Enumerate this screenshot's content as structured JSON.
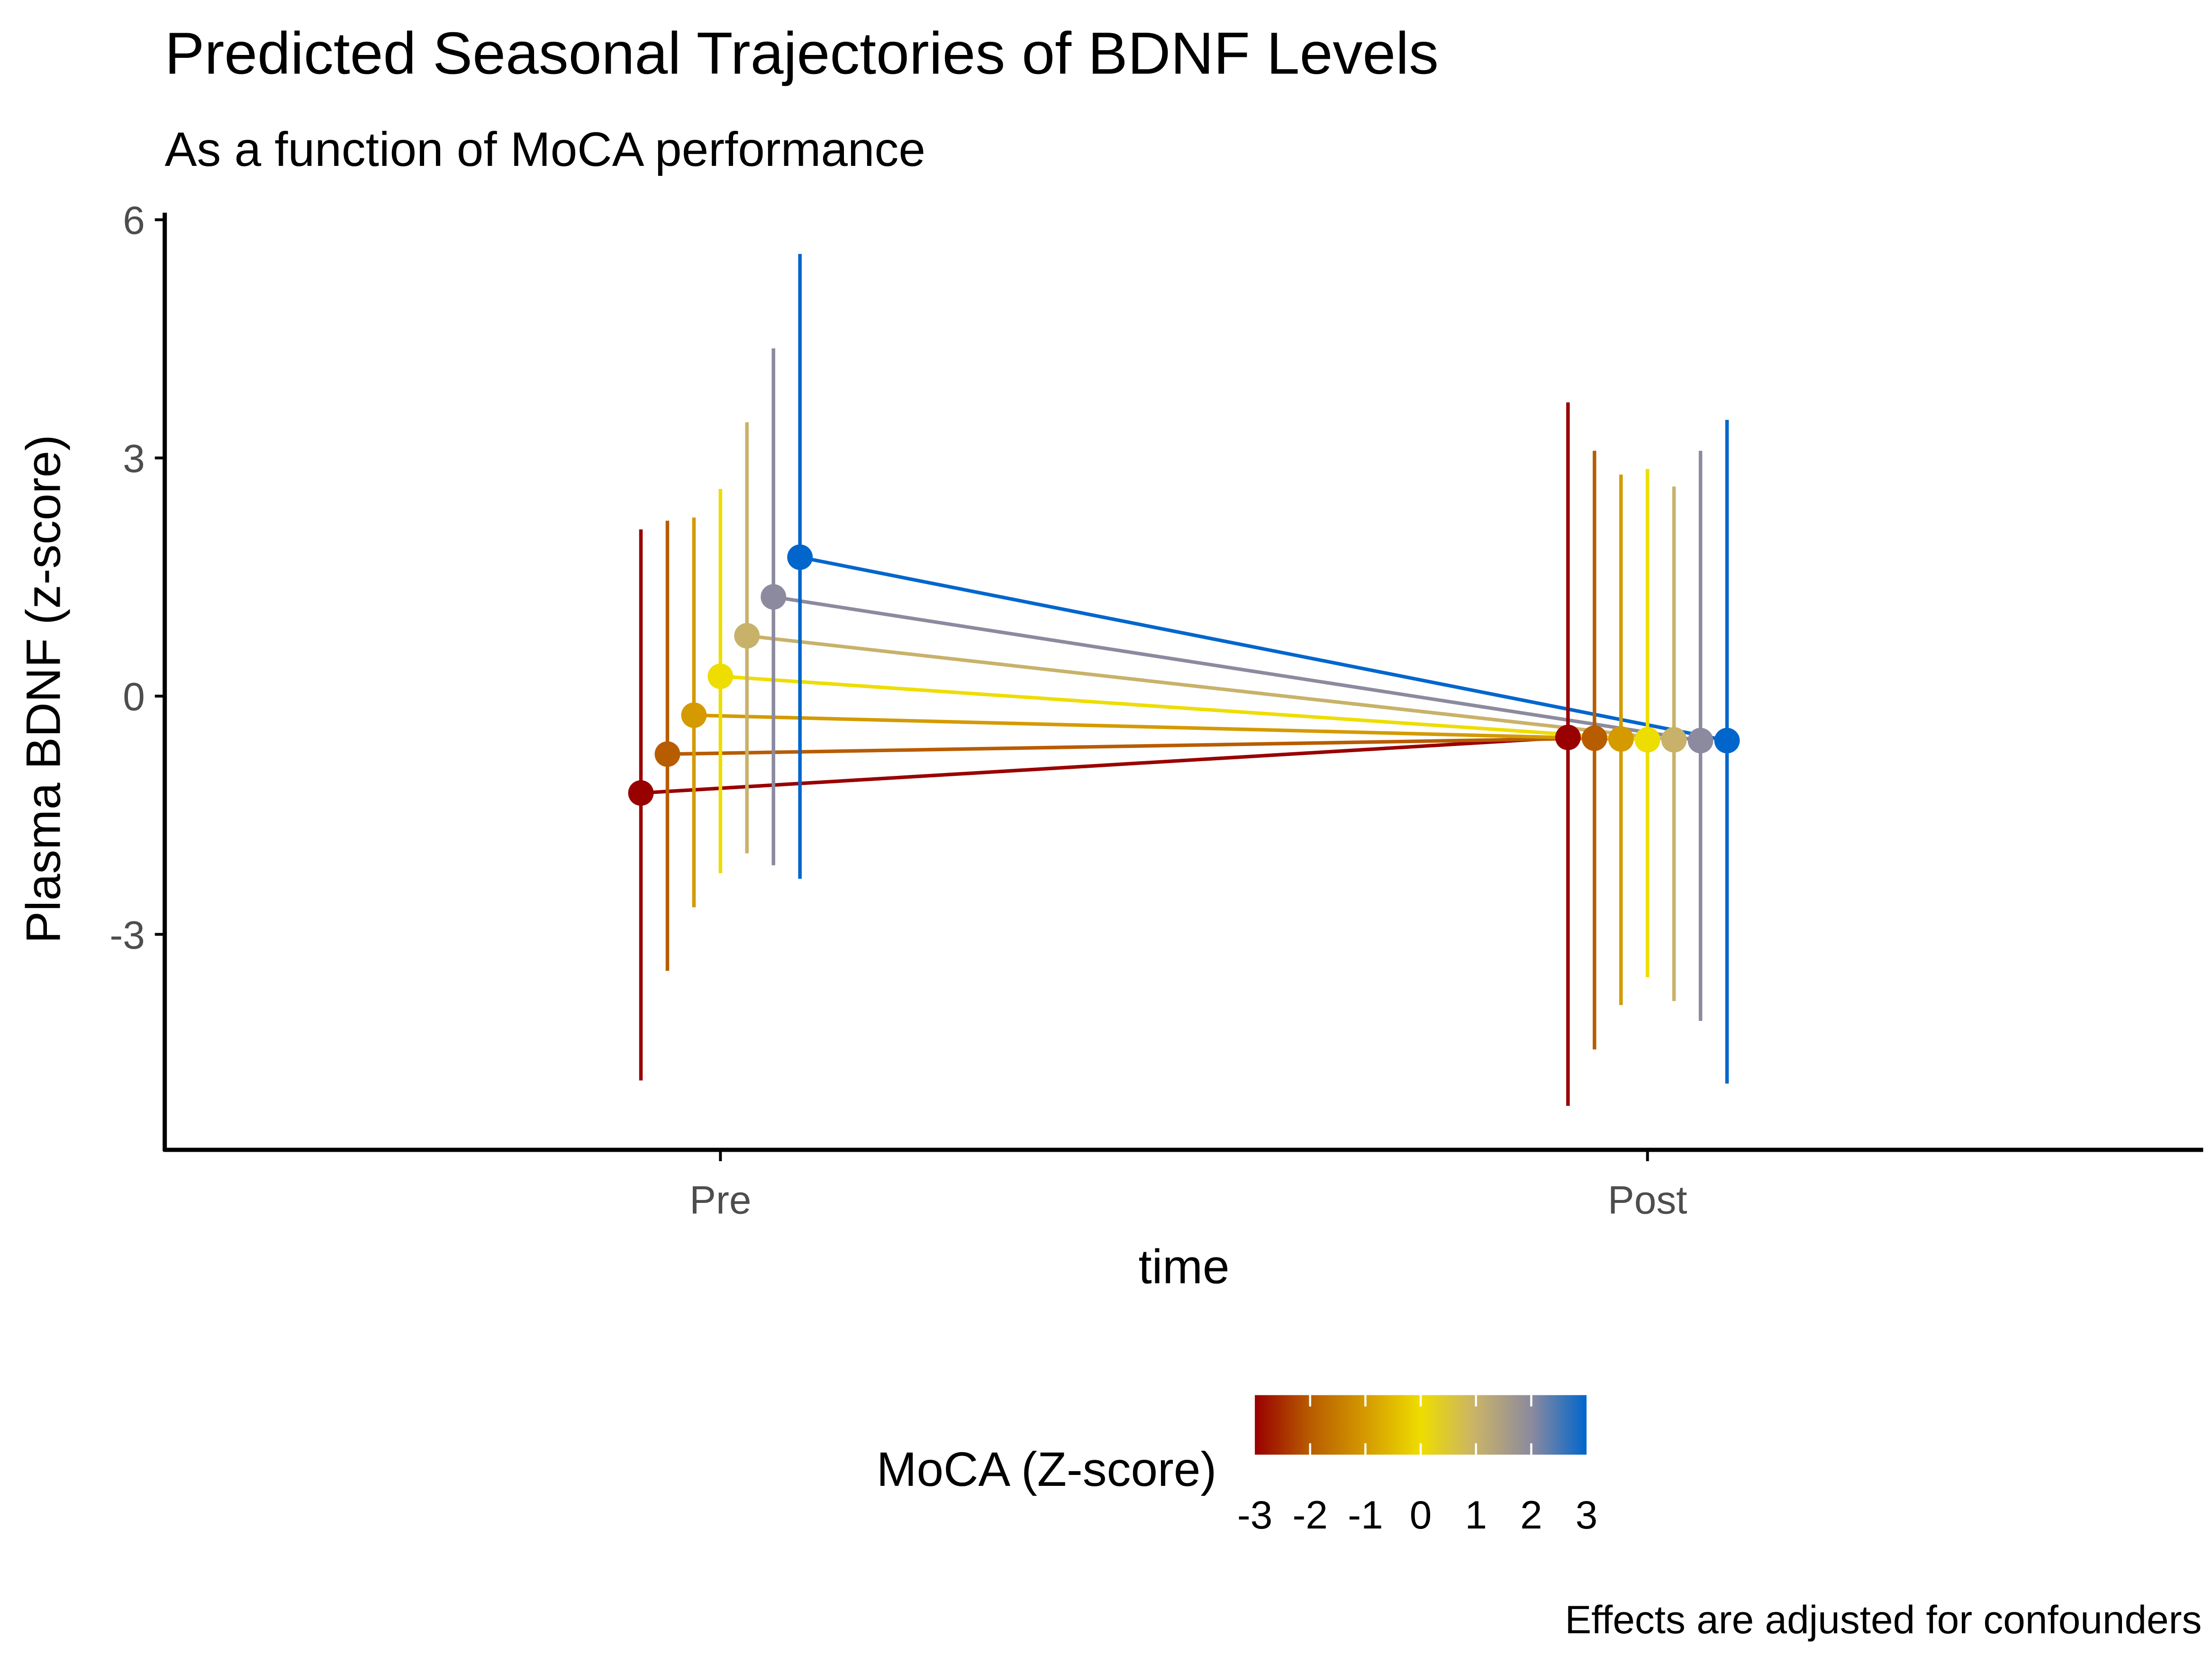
{
  "chart_data": {
    "type": "line",
    "title": "Predicted Seasonal Trajectories of BDNF Levels",
    "subtitle": "As a function of MoCA performance",
    "xlabel": "time",
    "ylabel": "Plasma BDNF (z-score)",
    "categories": [
      "Pre",
      "Post"
    ],
    "yticks": [
      "6",
      "3",
      "0",
      "-3"
    ],
    "ytick_values": [
      6,
      3,
      0,
      -3
    ],
    "ylim": [
      -5.5,
      6
    ],
    "grid": false,
    "caption": "Effects are adjusted for confounders",
    "legend": {
      "title": "MoCA (Z-score)",
      "placement": "bottom",
      "ticks": [
        "-3",
        "-2",
        "-1",
        "0",
        "1",
        "2",
        "3"
      ],
      "colors": [
        "#990000",
        "#B85C00",
        "#D49A00",
        "#EEDD00",
        "#C8B26A",
        "#8C8A9E",
        "#0066CC"
      ]
    },
    "series": [
      {
        "name": "-3",
        "color": "#990000",
        "values": [
          -1.22,
          -0.52
        ],
        "lower": [
          -4.84,
          -5.16
        ],
        "upper": [
          2.1,
          3.7
        ]
      },
      {
        "name": "-2",
        "color": "#B85C00",
        "values": [
          -0.73,
          -0.53
        ],
        "lower": [
          -3.46,
          -4.45
        ],
        "upper": [
          2.21,
          3.09
        ]
      },
      {
        "name": "-1",
        "color": "#D49A00",
        "values": [
          -0.24,
          -0.54
        ],
        "lower": [
          -2.66,
          -3.89
        ],
        "upper": [
          2.25,
          2.79
        ]
      },
      {
        "name": "0",
        "color": "#EEDD00",
        "values": [
          0.25,
          -0.55
        ],
        "lower": [
          -2.23,
          -3.54
        ],
        "upper": [
          2.61,
          2.86
        ]
      },
      {
        "name": "1",
        "color": "#C8B26A",
        "values": [
          0.76,
          -0.55
        ],
        "lower": [
          -1.98,
          -3.84
        ],
        "upper": [
          3.45,
          2.64
        ]
      },
      {
        "name": "2",
        "color": "#8C8A9E",
        "values": [
          1.25,
          -0.56
        ],
        "lower": [
          -2.13,
          -4.09
        ],
        "upper": [
          4.38,
          3.09
        ]
      },
      {
        "name": "3",
        "color": "#0066CC",
        "values": [
          1.75,
          -0.56
        ],
        "lower": [
          -2.3,
          -4.88
        ],
        "upper": [
          5.57,
          3.48
        ]
      }
    ]
  }
}
